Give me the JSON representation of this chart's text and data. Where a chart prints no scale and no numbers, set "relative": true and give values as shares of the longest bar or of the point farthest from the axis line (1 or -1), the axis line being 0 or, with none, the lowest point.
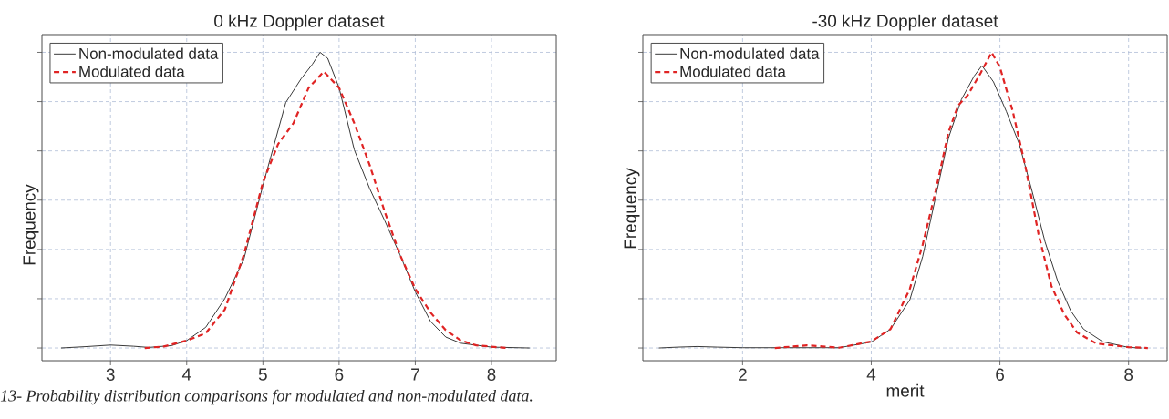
{
  "chart_data": [
    {
      "type": "line",
      "title": "0 kHz Doppler dataset",
      "ylabel": "Frequency",
      "relative": true,
      "xlim": [
        2.1,
        8.85
      ],
      "xticks": [
        3,
        4,
        5,
        6,
        7,
        8
      ],
      "grid": true,
      "legend": "top left",
      "tick_labels": "x",
      "marker": "none",
      "annotations": [
        "13- Probability distribution comparisons for modulated and non-modulated data."
      ],
      "series": [
        {
          "name": "Non-modulated data",
          "color": "#3a3a3a",
          "line_style": "solid",
          "x": [
            2.35,
            2.7,
            3.0,
            3.3,
            3.5,
            3.8,
            4.0,
            4.25,
            4.5,
            4.75,
            5.0,
            5.15,
            5.3,
            5.5,
            5.65,
            5.75,
            5.85,
            6.0,
            6.2,
            6.4,
            6.6,
            6.8,
            7.0,
            7.2,
            7.4,
            7.6,
            8.0,
            8.5
          ],
          "values": [
            0,
            0.005,
            0.01,
            0.006,
            0.002,
            0.008,
            0.025,
            0.07,
            0.167,
            0.3,
            0.55,
            0.69,
            0.83,
            0.91,
            0.96,
            1.0,
            0.98,
            0.88,
            0.67,
            0.54,
            0.43,
            0.315,
            0.19,
            0.09,
            0.037,
            0.016,
            0.003,
            0
          ]
        },
        {
          "name": "Modulated data",
          "color": "#e02424",
          "line_style": "dashed",
          "x": [
            3.45,
            3.7,
            4.0,
            4.25,
            4.5,
            4.75,
            5.0,
            5.2,
            5.4,
            5.6,
            5.8,
            6.0,
            6.2,
            6.4,
            6.6,
            6.8,
            7.0,
            7.2,
            7.4,
            7.6,
            7.8,
            8.2
          ],
          "values": [
            0,
            0.005,
            0.025,
            0.05,
            0.13,
            0.315,
            0.56,
            0.69,
            0.76,
            0.88,
            0.935,
            0.88,
            0.76,
            0.62,
            0.46,
            0.315,
            0.2,
            0.12,
            0.06,
            0.025,
            0.009,
            0
          ]
        }
      ]
    },
    {
      "type": "line",
      "title": "-30 kHz Doppler dataset",
      "xlabel": "merit",
      "ylabel": "Frequency",
      "relative": true,
      "xlim": [
        0.45,
        8.6
      ],
      "xticks": [
        2,
        4,
        6,
        8
      ],
      "grid": true,
      "legend": "top left",
      "tick_labels": "x",
      "marker": "none",
      "series": [
        {
          "name": "Non-modulated data",
          "color": "#3a3a3a",
          "line_style": "solid",
          "x": [
            0.7,
            1.0,
            1.3,
            1.6,
            2.0,
            3.0,
            3.5,
            4.0,
            4.3,
            4.6,
            4.8,
            5.0,
            5.2,
            5.4,
            5.6,
            5.72,
            5.9,
            6.1,
            6.3,
            6.5,
            6.7,
            6.9,
            7.1,
            7.3,
            7.6,
            8.0,
            8.2
          ],
          "values": [
            0,
            0.003,
            0.005,
            0.003,
            0.001,
            0.001,
            0.001,
            0.02,
            0.064,
            0.163,
            0.31,
            0.51,
            0.71,
            0.84,
            0.92,
            0.955,
            0.9,
            0.8,
            0.69,
            0.53,
            0.36,
            0.225,
            0.126,
            0.064,
            0.021,
            0.002,
            0
          ]
        },
        {
          "name": "Modulated data",
          "color": "#e02424",
          "line_style": "dashed",
          "x": [
            2.5,
            3.0,
            3.5,
            4.0,
            4.3,
            4.6,
            4.8,
            5.0,
            5.2,
            5.35,
            5.5,
            5.7,
            5.87,
            6.0,
            6.2,
            6.4,
            6.6,
            6.8,
            7.0,
            7.2,
            7.5,
            8.0,
            8.3
          ],
          "values": [
            0,
            0.009,
            0.001,
            0.022,
            0.064,
            0.2,
            0.35,
            0.53,
            0.73,
            0.82,
            0.855,
            0.93,
            1.0,
            0.95,
            0.8,
            0.61,
            0.385,
            0.21,
            0.114,
            0.052,
            0.015,
            0.003,
            0
          ]
        }
      ]
    }
  ]
}
